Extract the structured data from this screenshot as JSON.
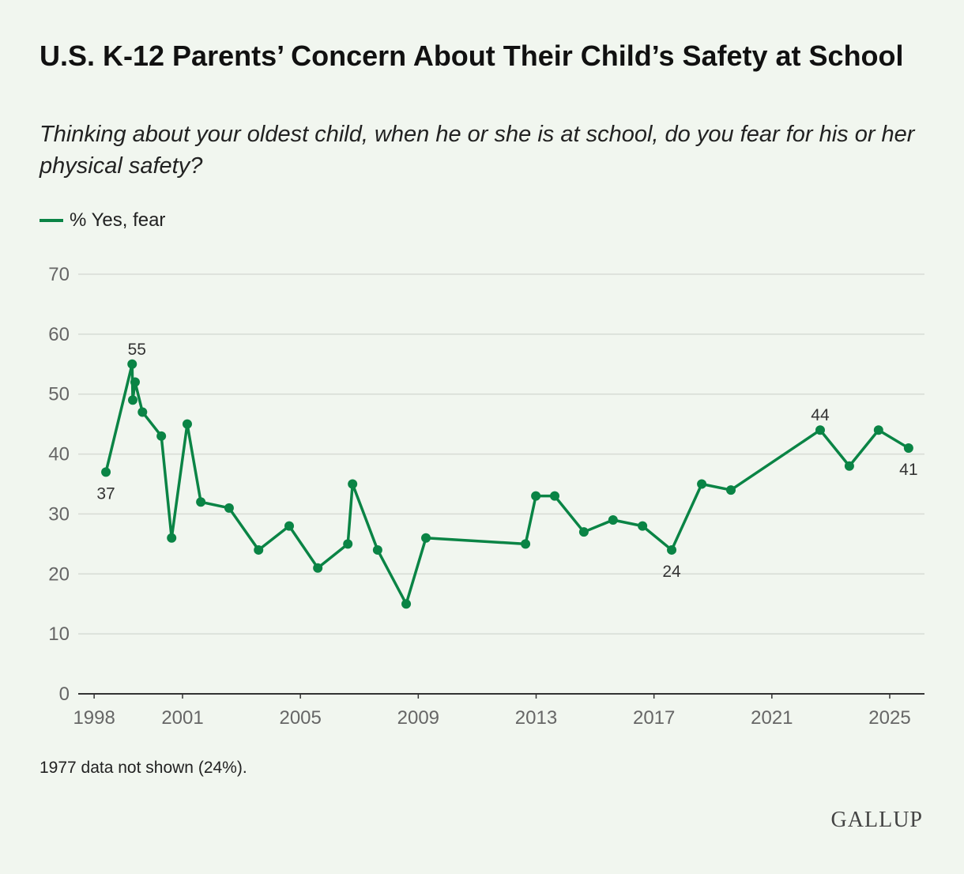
{
  "title": "U.S. K-12 Parents’ Concern About Their Child’s Safety at School",
  "subtitle": "Thinking about your oldest child, when he or she is at school, do you fear for his or her physical safety?",
  "note": "1977 data not shown (24%).",
  "logo": "GALLUP",
  "colors": {
    "series": "#0a8445",
    "grid": "#d7dcd5",
    "axis": "#333333"
  },
  "chart_data": {
    "type": "line",
    "title": "U.S. K-12 Parents’ Concern About Their Child’s Safety at School",
    "xlabel": "",
    "ylabel": "",
    "xlim": [
      1997.46,
      2026.18
    ],
    "ylim": [
      0,
      70
    ],
    "yticks": [
      0,
      10,
      20,
      30,
      40,
      50,
      60,
      70
    ],
    "xticks": [
      1998,
      2001,
      2005,
      2009,
      2013,
      2017,
      2021,
      2025
    ],
    "grid": true,
    "legend": "top-left",
    "series": [
      {
        "name": "% Yes, fear",
        "x": [
          1998.4,
          1999.29,
          1999.31,
          1999.39,
          1999.64,
          2000.28,
          2000.63,
          2001.16,
          2001.62,
          2002.58,
          2003.58,
          2004.62,
          2005.59,
          2006.61,
          2006.77,
          2007.62,
          2008.59,
          2009.26,
          2012.64,
          2012.99,
          2013.63,
          2014.62,
          2015.61,
          2016.61,
          2017.6,
          2018.62,
          2019.61,
          2022.64,
          2023.63,
          2024.62,
          2025.64
        ],
        "values": [
          37,
          55,
          49,
          52,
          47,
          43,
          26,
          45,
          32,
          31,
          24,
          28,
          21,
          25,
          35,
          24,
          15,
          26,
          25,
          33,
          33,
          27,
          29,
          28,
          24,
          35,
          34,
          44,
          38,
          44,
          41
        ]
      }
    ],
    "annotations": [
      {
        "index": 0,
        "text": "37",
        "pos": "below"
      },
      {
        "index": 1,
        "text": "55",
        "pos": "above"
      },
      {
        "index": 24,
        "text": "24",
        "pos": "below"
      },
      {
        "index": 27,
        "text": "44",
        "pos": "above"
      },
      {
        "index": 30,
        "text": "41",
        "pos": "below"
      }
    ]
  }
}
